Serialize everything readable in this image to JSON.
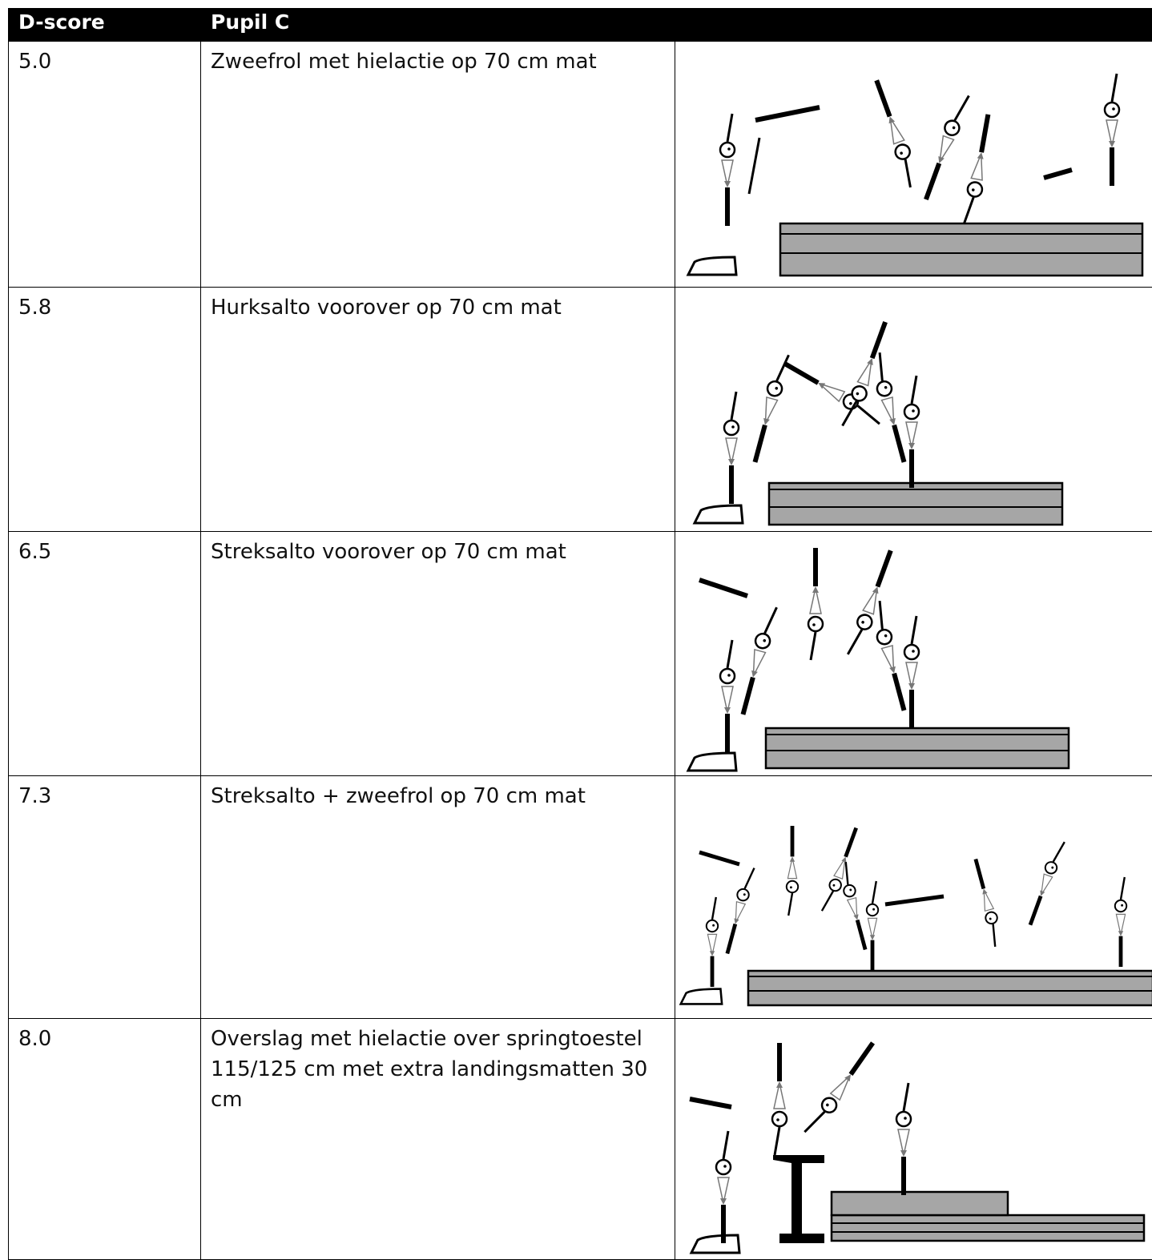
{
  "table": {
    "header": [
      "D-score",
      "Pupil C"
    ],
    "rows": [
      [
        "5.0",
        "Zweefrol met hielactie op 70 cm mat"
      ],
      [
        "5.8",
        "Hurksalto voorover op 70 cm mat"
      ],
      [
        "6.5",
        "Streksalto voorover op 70 cm mat"
      ],
      [
        "7.3",
        "Streksalto + zweefrol op 70 cm mat"
      ],
      [
        "8.0",
        "Overslag met hielactie over springtoestel 115/125 cm met extra landingsmatten 30 cm"
      ]
    ]
  }
}
